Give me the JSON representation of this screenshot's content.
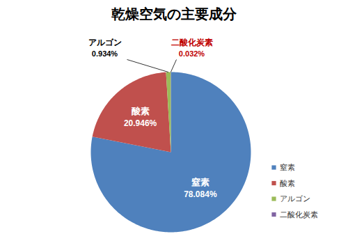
{
  "chart_data": {
    "type": "pie",
    "title": "乾燥空気の主要成分",
    "categories": [
      "窒素",
      "酸素",
      "アルゴン",
      "二酸化炭素"
    ],
    "values": [
      78.084,
      20.946,
      0.934,
      0.032
    ],
    "value_labels": [
      "78.084%",
      "20.946%",
      "0.934%",
      "0.032%"
    ],
    "colors": [
      "#4f81bd",
      "#c0504d",
      "#9bbb59",
      "#8064a2"
    ],
    "data_labels": true,
    "legend": "right"
  }
}
